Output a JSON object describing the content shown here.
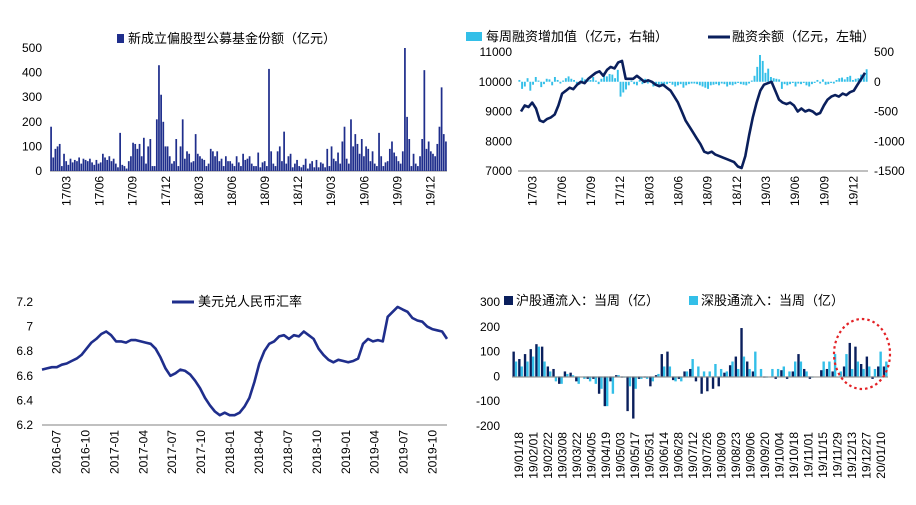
{
  "colors": {
    "navy": "#1F2E8C",
    "darknavy": "#0A1F5C",
    "cyan": "#33BFE8",
    "red": "#E32226"
  },
  "chart_data": [
    {
      "id": "fund",
      "type": "bar",
      "title": "新成立偏股型公募基金份额（亿元）",
      "ylim": [
        0,
        500
      ],
      "yticks": [
        "0",
        "100",
        "200",
        "300",
        "400",
        "500"
      ],
      "xticks": [
        "17/03",
        "17/06",
        "17/09",
        "17/12",
        "18/03",
        "18/06",
        "18/09",
        "18/12",
        "19/03",
        "19/06",
        "19/09",
        "19/12"
      ],
      "values": [
        180,
        55,
        90,
        100,
        110,
        20,
        70,
        40,
        25,
        50,
        35,
        45,
        40,
        55,
        30,
        50,
        45,
        40,
        50,
        35,
        25,
        45,
        30,
        35,
        70,
        55,
        45,
        60,
        40,
        50,
        30,
        15,
        155,
        25,
        20,
        10,
        40,
        60,
        115,
        110,
        90,
        110,
        60,
        135,
        30,
        100,
        130,
        20,
        20,
        210,
        430,
        310,
        200,
        100,
        100,
        60,
        30,
        40,
        130,
        20,
        100,
        210,
        50,
        80,
        70,
        35,
        40,
        150,
        70,
        60,
        50,
        45,
        20,
        30,
        90,
        80,
        60,
        80,
        40,
        50,
        20,
        60,
        40,
        40,
        30,
        20,
        60,
        35,
        20,
        70,
        45,
        50,
        60,
        30,
        20,
        20,
        75,
        15,
        35,
        40,
        20,
        415,
        80,
        30,
        20,
        80,
        100,
        40,
        160,
        30,
        60,
        70,
        15,
        30,
        45,
        20,
        15,
        25,
        50,
        10,
        30,
        40,
        15,
        45,
        15,
        35,
        30,
        15,
        90,
        20,
        100,
        50,
        40,
        75,
        30,
        120,
        180,
        50,
        30,
        210,
        100,
        150,
        110,
        70,
        130,
        60,
        100,
        90,
        40,
        80,
        30,
        20,
        155,
        60,
        20,
        35,
        40,
        90,
        120,
        75,
        60,
        40,
        30,
        80,
        500,
        220,
        130,
        20,
        70,
        30,
        20,
        60,
        130,
        410,
        90,
        120,
        80,
        70,
        60,
        110,
        180,
        340,
        150,
        120
      ]
    },
    {
      "id": "margin",
      "type": "bar+line",
      "legend": [
        "每周融资增加值（亿元，右轴）",
        "融资余额（亿元，左轴）"
      ],
      "ylim": [
        7000,
        11000
      ],
      "yticks": [
        "7000",
        "8000",
        "9000",
        "10000",
        "11000"
      ],
      "y2lim": [
        -1500,
        500
      ],
      "y2ticks": [
        "-1500",
        "-1000",
        "-500",
        "0",
        "500"
      ],
      "xticks": [
        "17/03",
        "17/06",
        "17/09",
        "17/12",
        "18/03",
        "18/06",
        "18/09",
        "18/12",
        "19/03",
        "19/06",
        "19/09",
        "19/12"
      ],
      "bars": [
        30,
        -120,
        -80,
        60,
        -150,
        -50,
        80,
        20,
        -90,
        -40,
        50,
        40,
        -60,
        80,
        30,
        -30,
        20,
        60,
        90,
        50,
        30,
        -30,
        -50,
        70,
        40,
        60,
        30,
        80,
        20,
        -40,
        50,
        150,
        90,
        130,
        120,
        60,
        200,
        -250,
        -180,
        -130,
        -60,
        20,
        -40,
        -60,
        30,
        -40,
        50,
        -30,
        20,
        -80,
        -40,
        -50,
        -70,
        -80,
        -40,
        -20,
        -50,
        -80,
        -60,
        -40,
        -100,
        -60,
        -40,
        -30,
        -30,
        -40,
        -60,
        -80,
        -100,
        -120,
        -60,
        -50,
        -40,
        -60,
        -30,
        -40,
        -80,
        -50,
        -60,
        -40,
        -20,
        -40,
        -50,
        -60,
        -30,
        20,
        100,
        250,
        450,
        350,
        150,
        220,
        80,
        60,
        50,
        40,
        -120,
        -40,
        -60,
        -40,
        -20,
        -80,
        -30,
        -40,
        -20,
        -60,
        -80,
        -40,
        -20,
        30,
        -30,
        40,
        -50,
        -40,
        -20,
        -30,
        30,
        60,
        70,
        40,
        80,
        100,
        30,
        50,
        60,
        120,
        140,
        210
      ],
      "line": [
        9000,
        9200,
        9150,
        9300,
        9100,
        8700,
        8650,
        8750,
        8800,
        8900,
        9200,
        9600,
        9700,
        9800,
        9750,
        9900,
        10000,
        9950,
        10100,
        10200,
        10300,
        10350,
        10200,
        10400,
        10500,
        10450,
        10650,
        10700,
        10100,
        10100,
        10100,
        10200,
        10100,
        10000,
        10050,
        10000,
        9900,
        9850,
        9900,
        9800,
        9700,
        9500,
        9300,
        9000,
        8700,
        8500,
        8300,
        8100,
        7900,
        7650,
        7600,
        7650,
        7550,
        7500,
        7450,
        7400,
        7350,
        7300,
        7150,
        7100,
        7500,
        8200,
        8800,
        9300,
        9700,
        9900,
        9950,
        10000,
        9700,
        9400,
        9300,
        9250,
        9300,
        9200,
        9000,
        9100,
        9000,
        9050,
        9000,
        8900,
        8950,
        9200,
        9400,
        9500,
        9550,
        9500,
        9600,
        9550,
        9650,
        9700,
        9900,
        10100,
        10300
      ]
    },
    {
      "id": "fx",
      "type": "line",
      "legend": [
        "美元兑人民币汇率"
      ],
      "ylim": [
        6.2,
        7.2
      ],
      "yticks": [
        "6.2",
        "6.4",
        "6.6",
        "6.8",
        "7",
        "7.2"
      ],
      "xticks": [
        "2016-07",
        "2016-10",
        "2017-01",
        "2017-04",
        "2017-07",
        "2017-10",
        "2018-01",
        "2018-04",
        "2018-07",
        "2018-10",
        "2019-01",
        "2019-04",
        "2019-07",
        "2019-10"
      ],
      "line": [
        6.65,
        6.66,
        6.67,
        6.67,
        6.69,
        6.7,
        6.72,
        6.74,
        6.77,
        6.82,
        6.87,
        6.9,
        6.94,
        6.96,
        6.93,
        6.88,
        6.88,
        6.87,
        6.89,
        6.89,
        6.88,
        6.87,
        6.86,
        6.82,
        6.75,
        6.66,
        6.6,
        6.62,
        6.65,
        6.64,
        6.61,
        6.56,
        6.5,
        6.42,
        6.36,
        6.31,
        6.28,
        6.3,
        6.28,
        6.28,
        6.3,
        6.35,
        6.42,
        6.55,
        6.7,
        6.8,
        6.86,
        6.88,
        6.92,
        6.93,
        6.9,
        6.93,
        6.92,
        6.96,
        6.93,
        6.9,
        6.82,
        6.77,
        6.73,
        6.71,
        6.73,
        6.72,
        6.71,
        6.72,
        6.74,
        6.86,
        6.9,
        6.88,
        6.89,
        6.88,
        7.08,
        7.12,
        7.16,
        7.14,
        7.12,
        7.07,
        7.05,
        7.04,
        7,
        6.98,
        6.97,
        6.96,
        6.9
      ]
    },
    {
      "id": "northbound",
      "type": "stacked-bar",
      "legend": [
        "沪股通流入：当周（亿）",
        "深股通流入：当周（亿）"
      ],
      "ylim": [
        -200,
        300
      ],
      "yticks": [
        "-200",
        "-100",
        "0",
        "100",
        "200",
        "300"
      ],
      "xticks": [
        "19/01/18",
        "19/02/01",
        "19/02/22",
        "19/03/08",
        "19/03/22",
        "19/04/05",
        "19/04/19",
        "19/05/03",
        "19/05/17",
        "19/05/31",
        "19/06/14",
        "19/06/28",
        "19/07/12",
        "19/07/26",
        "19/08/09",
        "19/08/23",
        "19/09/06",
        "19/09/20",
        "19/10/04",
        "19/10/18",
        "19/11/01",
        "19/11/15",
        "19/11/29",
        "19/12/13",
        "19/12/27",
        "20/01/10"
      ],
      "sh": [
        100,
        70,
        90,
        110,
        130,
        120,
        40,
        30,
        -30,
        20,
        15,
        -20,
        0,
        -10,
        -10,
        -70,
        -120,
        -20,
        5,
        -5,
        -140,
        -170,
        -10,
        -5,
        -40,
        5,
        90,
        100,
        -15,
        -10,
        20,
        30,
        -20,
        -70,
        -60,
        -50,
        -40,
        15,
        45,
        80,
        195,
        60,
        20,
        0,
        -5,
        0,
        -10,
        25,
        -10,
        20,
        90,
        30,
        -10,
        0,
        25,
        30,
        20,
        0,
        40,
        135,
        120,
        50,
        80,
        -10,
        40,
        40
      ],
      "sz": [
        60,
        40,
        60,
        80,
        120,
        60,
        20,
        -20,
        -30,
        10,
        5,
        -30,
        -10,
        -20,
        -30,
        -50,
        -120,
        -70,
        5,
        -5,
        -40,
        -50,
        -10,
        -10,
        -20,
        10,
        40,
        40,
        -20,
        -20,
        20,
        70,
        40,
        20,
        20,
        50,
        30,
        20,
        60,
        30,
        80,
        30,
        100,
        30,
        -5,
        30,
        30,
        40,
        20,
        60,
        60,
        20,
        -5,
        0,
        60,
        60,
        90,
        20,
        90,
        30,
        60,
        30,
        40,
        30,
        100,
        60
      ]
    }
  ]
}
